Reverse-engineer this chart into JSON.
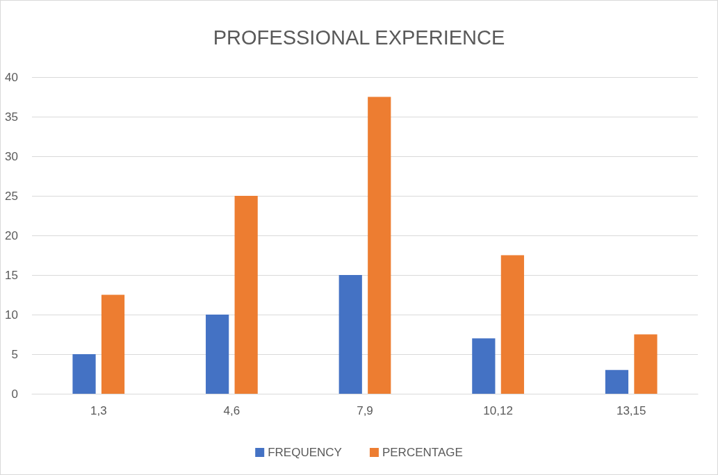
{
  "chart_data": {
    "type": "bar",
    "title": "PROFESSIONAL EXPERIENCE",
    "categories": [
      "1,3",
      "4,6",
      "7,9",
      "10,12",
      "13,15"
    ],
    "series": [
      {
        "name": "FREQUENCY",
        "color": "#4472c4",
        "values": [
          5,
          10,
          15,
          7,
          3
        ]
      },
      {
        "name": "PERCENTAGE",
        "color": "#ed7d31",
        "values": [
          12.5,
          25,
          37.5,
          17.5,
          7.5
        ]
      }
    ],
    "ylim": [
      0,
      40
    ],
    "yticks": [
      0,
      5,
      10,
      15,
      20,
      25,
      30,
      35,
      40
    ],
    "grid": "y",
    "legend": "bottom"
  }
}
